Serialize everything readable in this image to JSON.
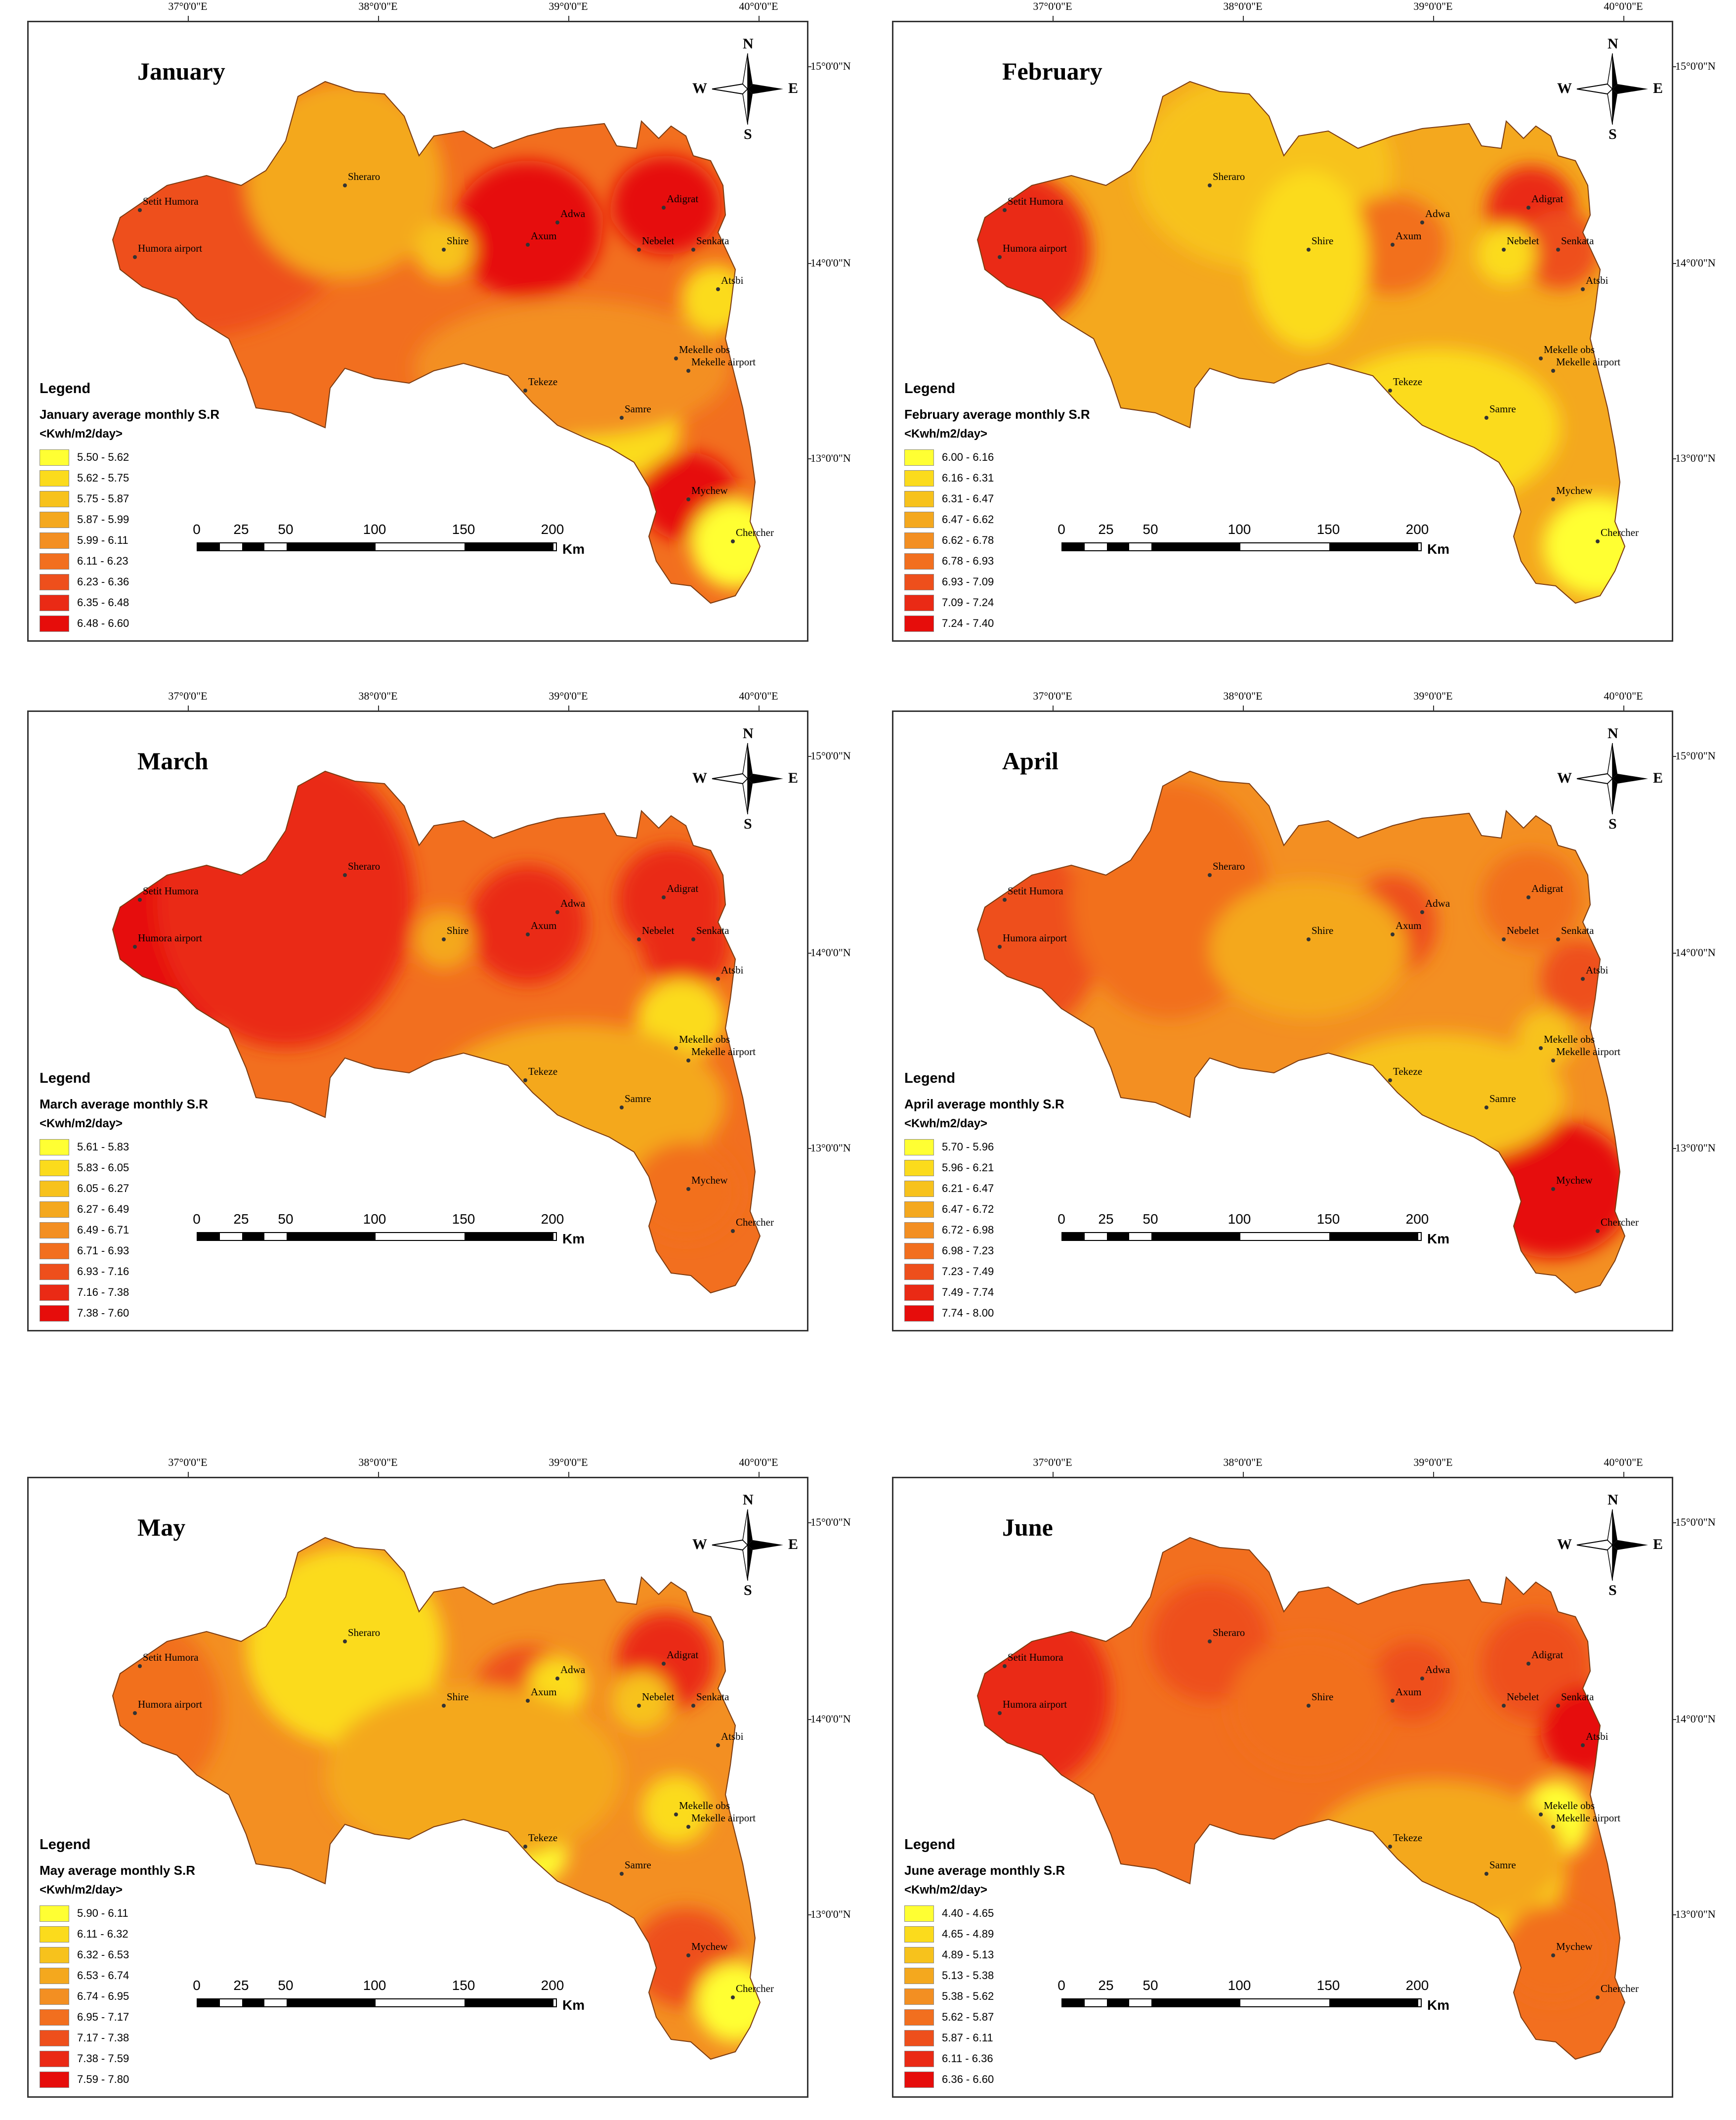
{
  "labels": {
    "legend_heading": "Legend",
    "unit": "<Kwh/m2/day>",
    "scale_unit": "Km",
    "scale_ticks": [
      "0",
      "25",
      "50",
      "100",
      "150",
      "200"
    ],
    "compass": {
      "n": "N",
      "s": "S",
      "e": "E",
      "w": "W"
    },
    "longitudes": [
      "37°0'0\"E",
      "38°0'0\"E",
      "39°0'0\"E",
      "40°0'0\"E"
    ],
    "latitudes": [
      "15°0'0\"N",
      "14°0'0\"N",
      "13°0'0\"N"
    ]
  },
  "stations": [
    {
      "name": "Setit Humora"
    },
    {
      "name": "Humora airport"
    },
    {
      "name": "Sheraro"
    },
    {
      "name": "Shire"
    },
    {
      "name": "Axum"
    },
    {
      "name": "Adwa"
    },
    {
      "name": "Adigrat"
    },
    {
      "name": "Nebelet"
    },
    {
      "name": "Senkata"
    },
    {
      "name": "Atsbi"
    },
    {
      "name": "Mekelle obs"
    },
    {
      "name": "Mekelle airport"
    },
    {
      "name": "Tekeze"
    },
    {
      "name": "Samre"
    },
    {
      "name": "Mychew"
    },
    {
      "name": "Chercher"
    }
  ],
  "legend_colors": [
    "#ffff33",
    "#fbdb1c",
    "#f7c21c",
    "#f4a81e",
    "#f38f22",
    "#f26f1f",
    "#ee4f1c",
    "#ea2a15",
    "#e60d0b"
  ],
  "panels": [
    {
      "month": "January",
      "legend_title": "January average monthly S.R",
      "classes": [
        "5.50 - 5.62",
        "5.62 - 5.75",
        "5.75 - 5.87",
        "5.87 - 5.99",
        "5.99 - 6.11",
        "6.11 - 6.23",
        "6.23 - 6.36",
        "6.35 - 6.48",
        "6.48 - 6.60"
      ]
    },
    {
      "month": "February",
      "legend_title": "February average monthly S.R",
      "classes": [
        "6.00 - 6.16",
        "6.16 - 6.31",
        "6.31 - 6.47",
        "6.47 - 6.62",
        "6.62 - 6.78",
        "6.78 - 6.93",
        "6.93 - 7.09",
        "7.09 - 7.24",
        "7.24 - 7.40"
      ]
    },
    {
      "month": "March",
      "legend_title": "March average monthly S.R",
      "classes": [
        "5.61 - 5.83",
        "5.83 - 6.05",
        "6.05 - 6.27",
        "6.27 - 6.49",
        "6.49 - 6.71",
        "6.71 - 6.93",
        "6.93 - 7.16",
        "7.16 - 7.38",
        "7.38 - 7.60"
      ]
    },
    {
      "month": "April",
      "legend_title": "April average monthly S.R",
      "classes": [
        "5.70 - 5.96",
        "5.96 - 6.21",
        "6.21 - 6.47",
        "6.47 - 6.72",
        "6.72 - 6.98",
        "6.98 - 7.23",
        "7.23 - 7.49",
        "7.49 - 7.74",
        "7.74 - 8.00"
      ]
    },
    {
      "month": "May",
      "legend_title": "May average monthly S.R",
      "classes": [
        "5.90 - 6.11",
        "6.11 - 6.32",
        "6.32 - 6.53",
        "6.53 - 6.74",
        "6.74 - 6.95",
        "6.95 - 7.17",
        "7.17 - 7.38",
        "7.38 - 7.59",
        "7.59 - 7.80"
      ]
    },
    {
      "month": "June",
      "legend_title": "June average monthly S.R",
      "classes": [
        "4.40 - 4.65",
        "4.65 - 4.89",
        "4.89 - 5.13",
        "5.13 - 5.38",
        "5.38 - 5.62",
        "5.62 - 5.87",
        "5.87 - 6.11",
        "6.11 - 6.36",
        "6.36 - 6.60"
      ]
    }
  ]
}
